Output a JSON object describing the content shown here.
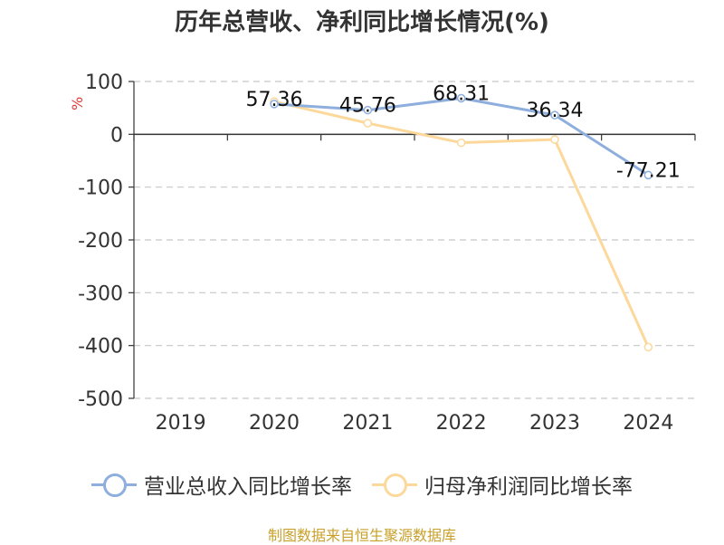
{
  "title": "历年总营收、净利同比增长情况(%)",
  "unit_label": "%",
  "source": "制图数据来自恒生聚源数据库",
  "chart_data": {
    "type": "line",
    "title": "历年总营收、净利同比增长情况(%)",
    "ylabel": "%",
    "categories": [
      "2019",
      "2020",
      "2021",
      "2022",
      "2023",
      "2024"
    ],
    "ylim": [
      -500,
      100
    ],
    "yticks": [
      "100",
      "0",
      "-100",
      "-200",
      "-300",
      "-400",
      "-500"
    ],
    "grid": true,
    "legend_position": "bottom",
    "series": [
      {
        "name": "营业总收入同比增长率",
        "color": "#8eaedd",
        "values": [
          null,
          57.36,
          45.76,
          68.31,
          36.34,
          -77.21
        ],
        "labels": [
          null,
          "57.36",
          "45.76",
          "68.31",
          "36.34",
          "-77.21"
        ]
      },
      {
        "name": "归母净利润同比增长率",
        "color": "#fcd89b",
        "values": [
          null,
          62,
          21,
          -16,
          -10,
          -403
        ],
        "labels": [
          null,
          null,
          null,
          null,
          null,
          null
        ]
      }
    ]
  }
}
